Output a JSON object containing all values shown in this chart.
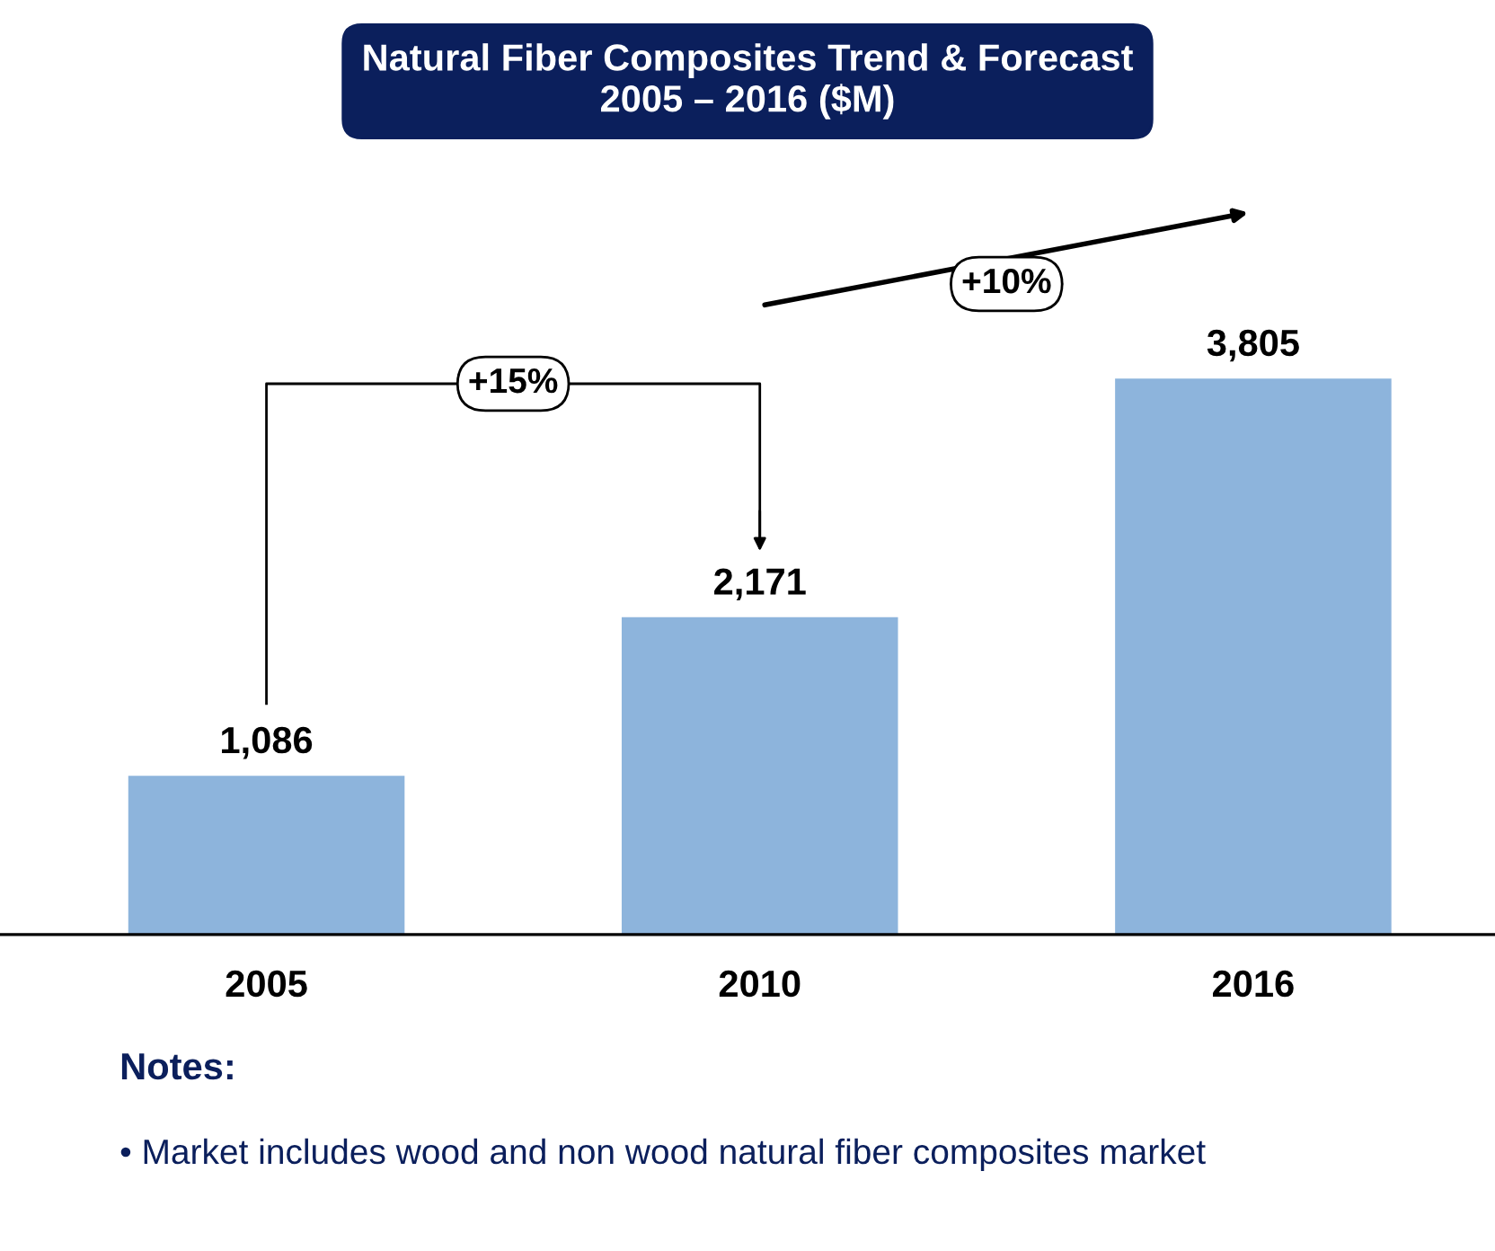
{
  "chart_data": {
    "type": "bar",
    "title": "Natural Fiber Composites Trend & Forecast\n2005 – 2016 ($M)",
    "categories": [
      "2005",
      "2010",
      "2016"
    ],
    "values": [
      1086,
      2171,
      3805
    ],
    "color": "#8db4dc",
    "data_labels": true,
    "value_labels": [
      "1,086",
      "2,171",
      "3,805"
    ],
    "annotations": [
      "+15%",
      "+10%",
      "Notes:",
      "• Market includes wood and non wood natural fiber composites market"
    ]
  }
}
